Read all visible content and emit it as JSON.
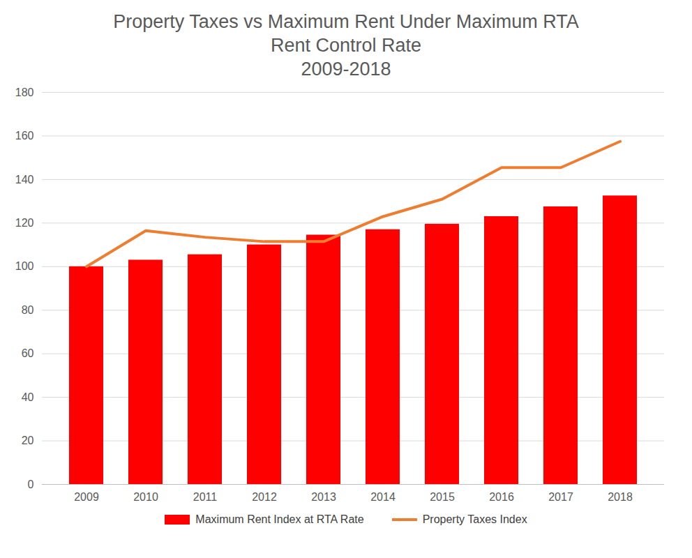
{
  "chart_data": {
    "type": "bar",
    "title": "Property Taxes vs Maximum Rent Under Maximum RTA Rent Control Rate",
    "subtitle": "2009-2018",
    "categories": [
      "2009",
      "2010",
      "2011",
      "2012",
      "2013",
      "2014",
      "2015",
      "2016",
      "2017",
      "2018"
    ],
    "series": [
      {
        "name": "Maximum Rent Index at RTA Rate",
        "type": "bar",
        "color": "#ff0000",
        "values": [
          100,
          103,
          105.5,
          110,
          114.5,
          117,
          119.5,
          123,
          127.5,
          132.5
        ]
      },
      {
        "name": "Property Taxes Index",
        "type": "line",
        "color": "#ed7d31",
        "values": [
          100,
          116.5,
          113.5,
          111.5,
          111.5,
          123,
          131,
          145.5,
          145.5,
          157.5
        ]
      }
    ],
    "ylim": [
      0,
      180
    ],
    "yticks": [
      0,
      20,
      40,
      60,
      80,
      100,
      120,
      140,
      160,
      180
    ],
    "grid": true,
    "legend": "bottom"
  }
}
